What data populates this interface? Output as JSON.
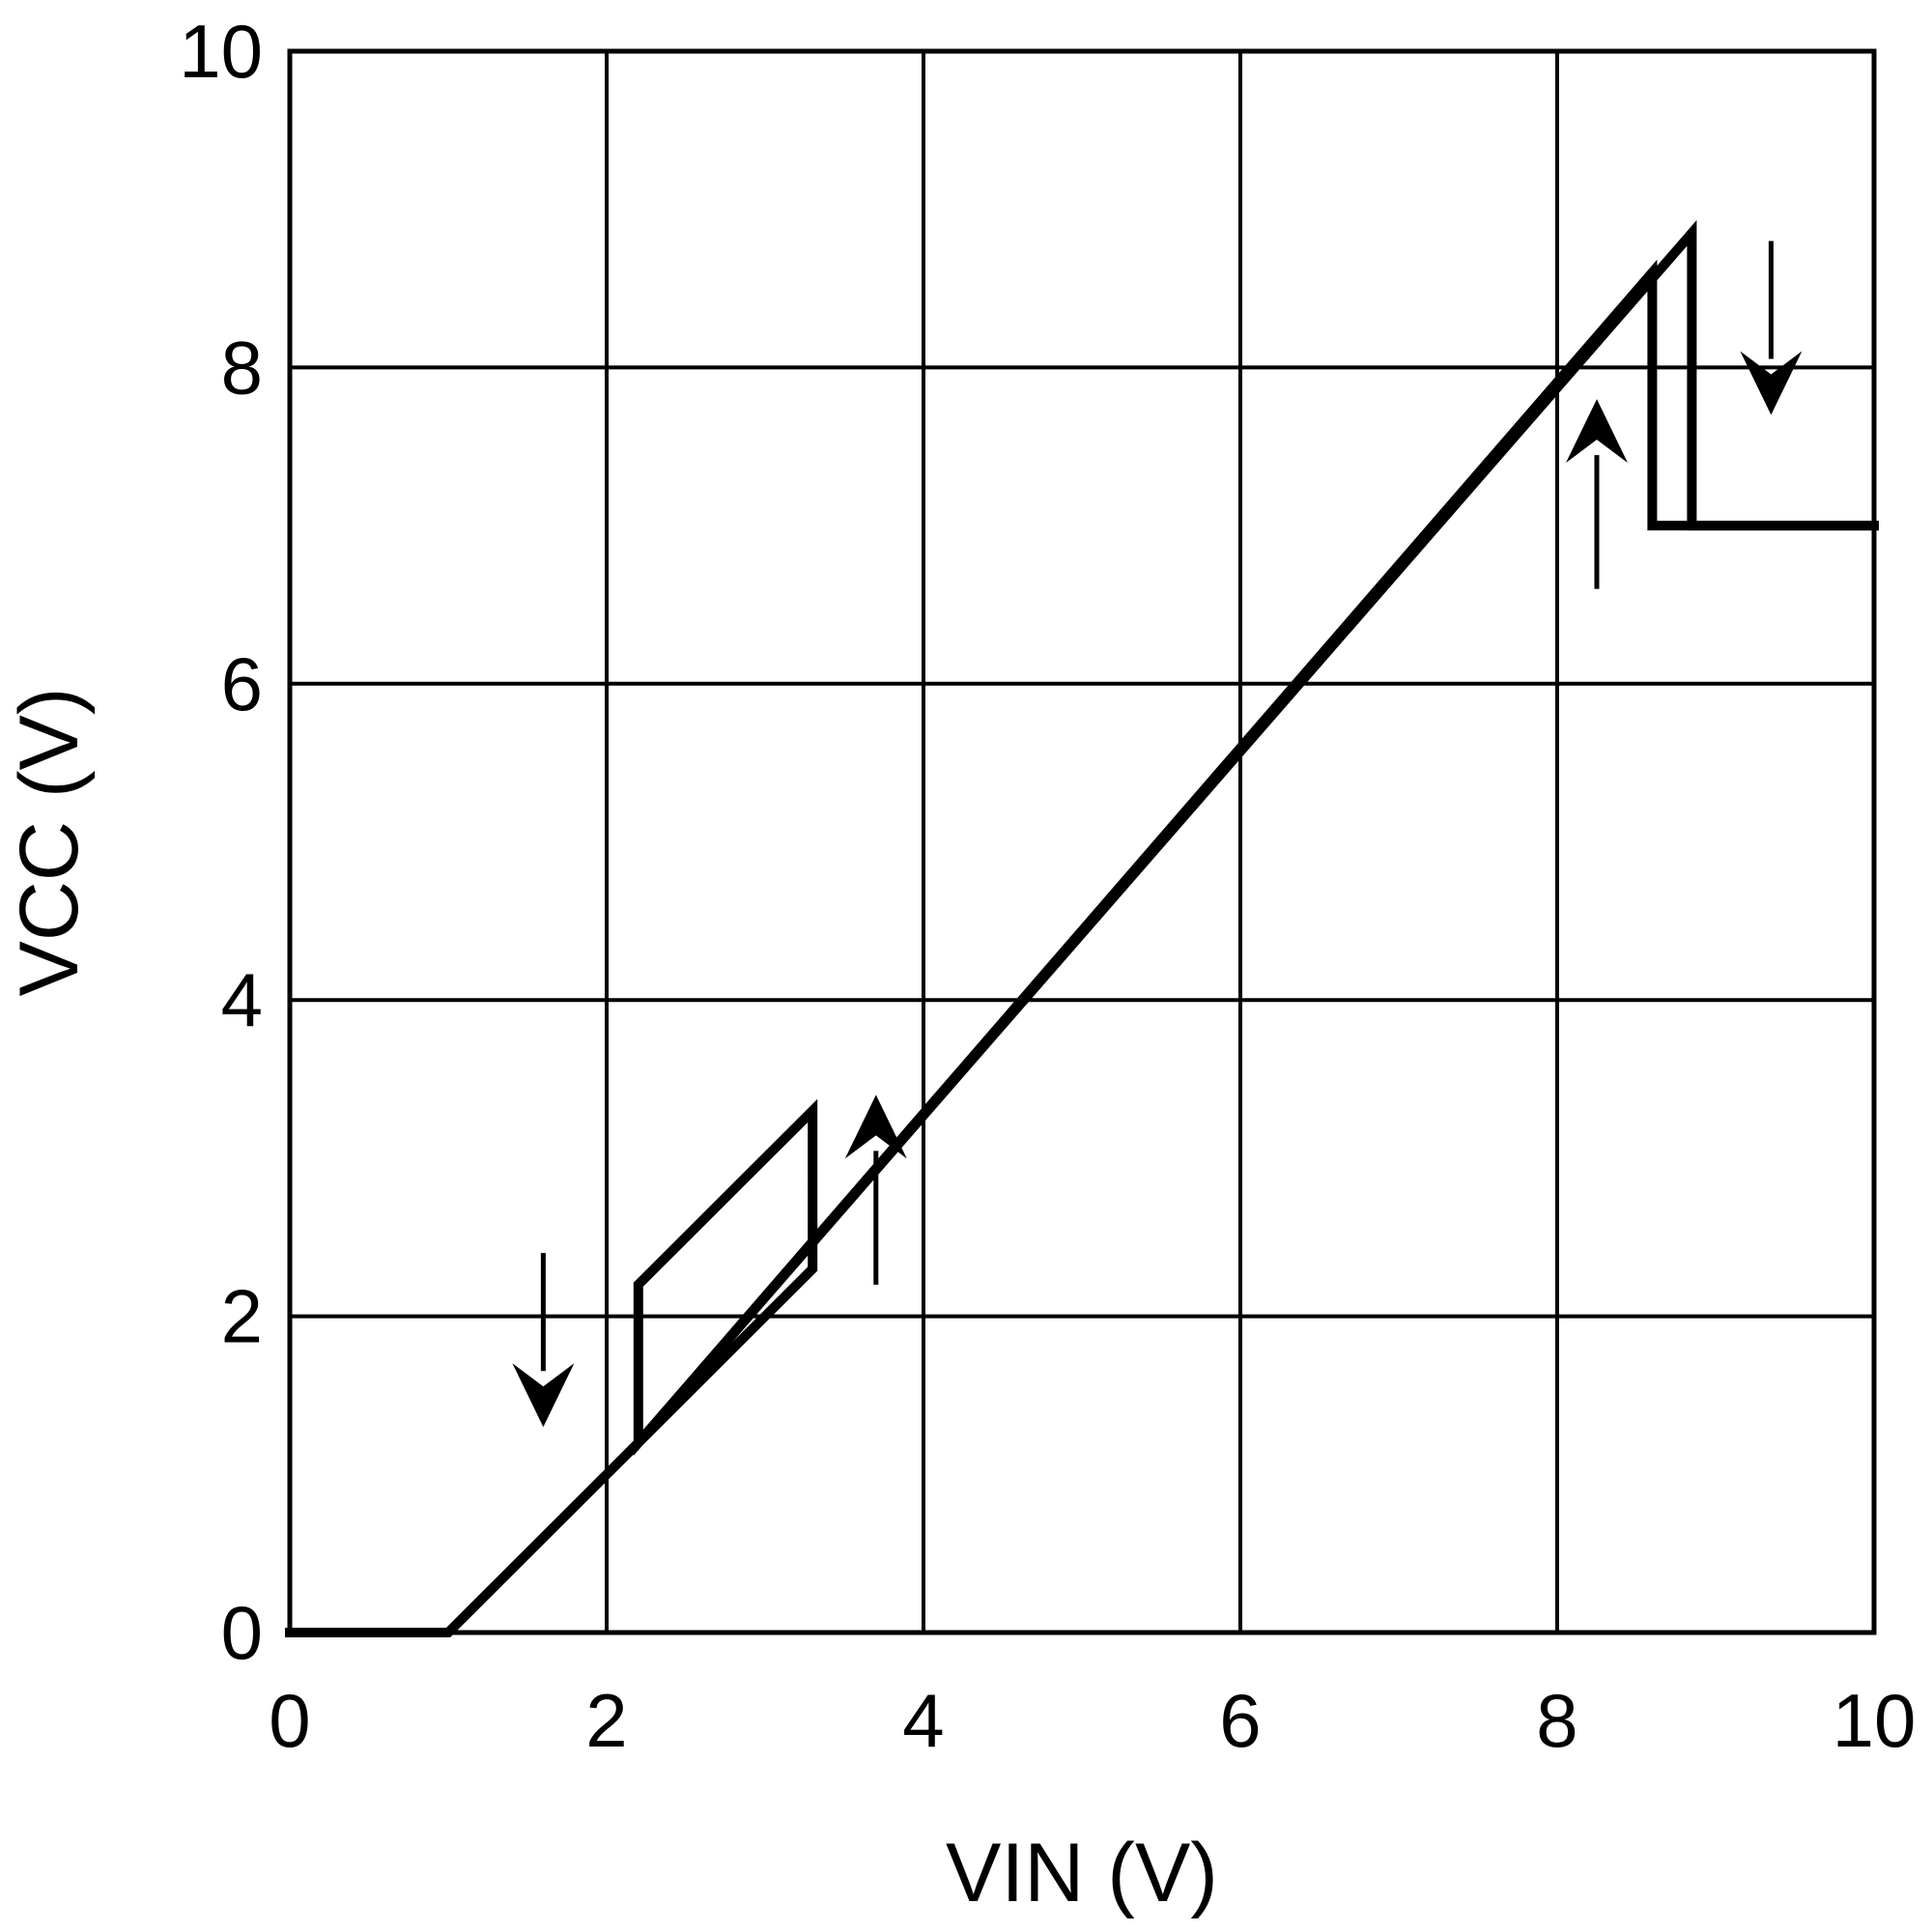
{
  "chart_data": {
    "type": "line",
    "title": "",
    "xlabel": "VIN (V)",
    "ylabel": "VCC (V)",
    "xlim": [
      0,
      10
    ],
    "ylim": [
      0,
      10
    ],
    "x_ticks": [
      "0",
      "2",
      "4",
      "6",
      "8",
      "10"
    ],
    "y_ticks": [
      "0",
      "2",
      "4",
      "6",
      "8",
      "10"
    ],
    "grid": true,
    "legend": "none",
    "colors": {
      "line": "#000000",
      "grid": "#000000",
      "background": "#ffffff"
    },
    "series": [
      {
        "x": [
          0,
          1,
          2.2,
          2.2,
          3.3,
          3.3,
          2.2,
          2.2,
          8.6,
          8.6,
          10
        ],
        "y": [
          0,
          0,
          1.2,
          1.2,
          2.3,
          3.3,
          2.2,
          1.2,
          8.6,
          7,
          7
        ]
      },
      {
        "x": [
          2.2,
          8.85,
          8.85,
          10
        ],
        "y": [
          1.2,
          8.85,
          7,
          7
        ]
      }
    ],
    "arrows": [
      {
        "direction": "down",
        "x": 1.6,
        "y_from": 2.4,
        "y_to": 1.3
      },
      {
        "direction": "up",
        "x": 3.7,
        "y_from": 2.2,
        "y_to": 3.4
      },
      {
        "direction": "up",
        "x": 8.25,
        "y_from": 6.6,
        "y_to": 7.8
      },
      {
        "direction": "down",
        "x": 9.35,
        "y_from": 8.8,
        "y_to": 7.7
      }
    ]
  }
}
